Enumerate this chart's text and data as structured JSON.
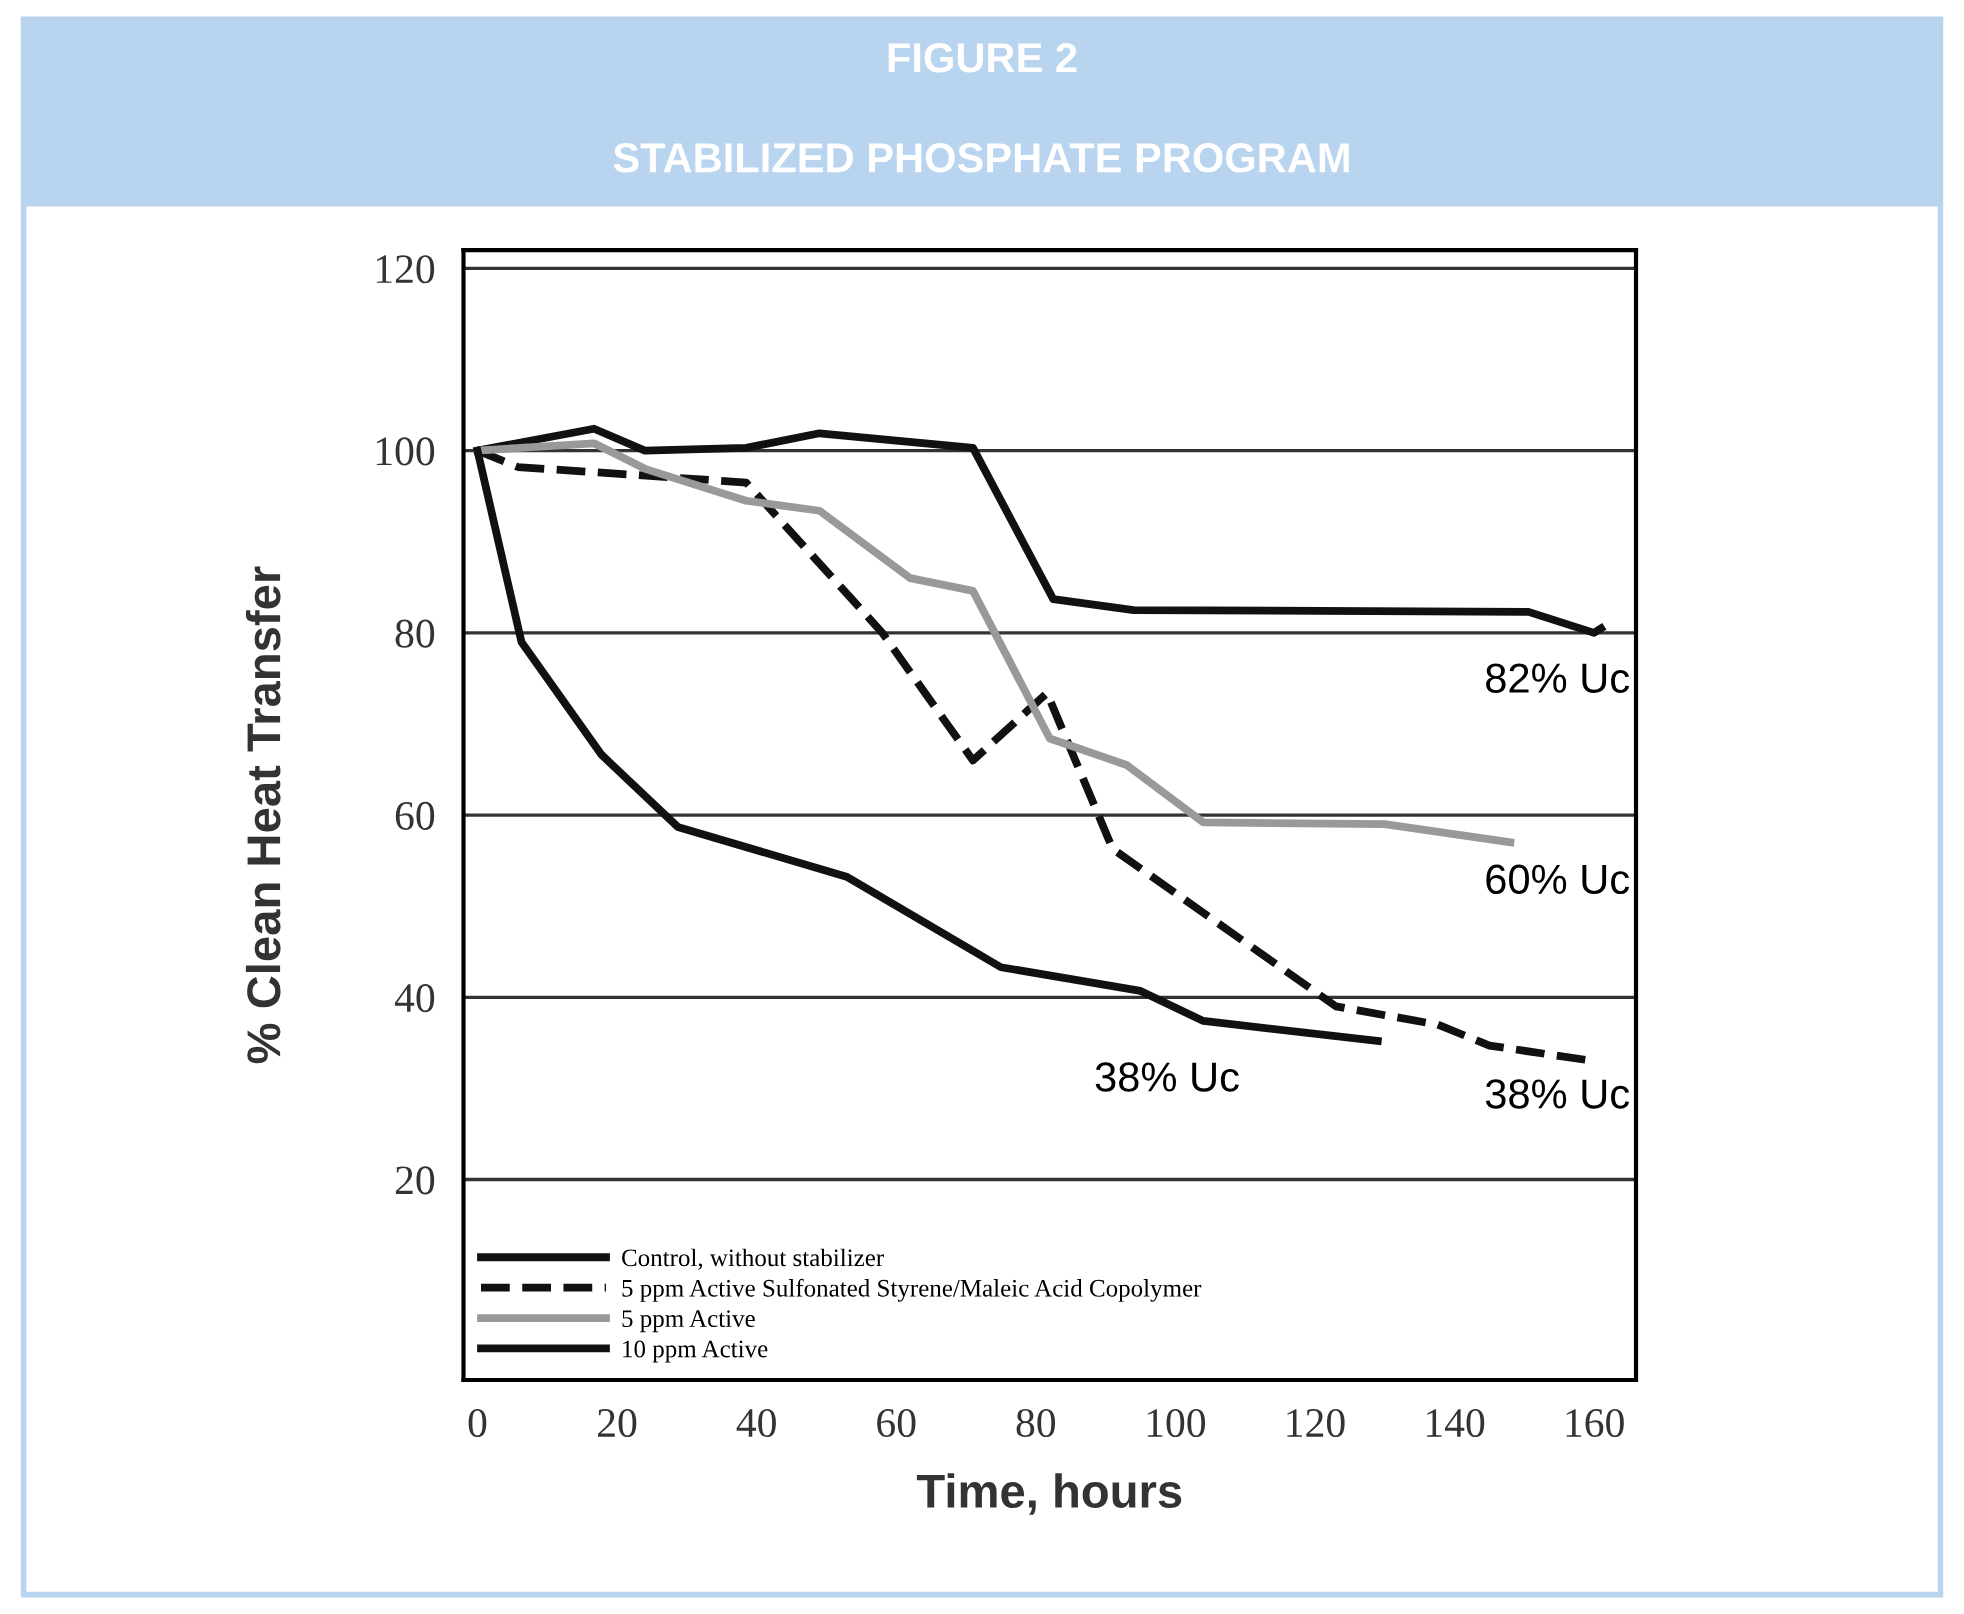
{
  "chart_data": {
    "type": "line",
    "title": "FIGURE 2",
    "subtitle": "STABILIZED PHOSPHATE PROGRAM",
    "xlabel": "Time, hours",
    "ylabel": "% Clean Heat Transfer",
    "xlim": [
      -2,
      166
    ],
    "ylim": [
      -2,
      122
    ],
    "xticks": [
      0,
      20,
      40,
      60,
      80,
      100,
      120,
      140,
      160
    ],
    "yticks": [
      20,
      40,
      60,
      80,
      100,
      120
    ],
    "grid": "y",
    "legend": "bottom left",
    "marker": "none",
    "series": [
      {
        "name": "Control, without stabilizer",
        "color": "#111111",
        "line_style": "solid",
        "x": [
          0,
          16.7,
          24,
          38.5,
          49,
          71,
          82.5,
          94,
          150.6,
          160,
          161
        ],
        "values": [
          100,
          102.4,
          100,
          100.3,
          101.9,
          100.3,
          83.7,
          82.5,
          82.3,
          80,
          80.5
        ]
      },
      {
        "name": "5 ppm Active Sulfonated Styrene/Maleic Acid Copolymer",
        "color": "#111111",
        "line_style": "dashed",
        "x": [
          0,
          5.8,
          38.5,
          58,
          71,
          81.6,
          91,
          123,
          137.6,
          145,
          160
        ],
        "values": [
          100,
          98.2,
          96.5,
          80,
          66,
          73.4,
          56.3,
          39,
          37,
          34.7,
          33
        ]
      },
      {
        "name": "5 ppm Active",
        "color": "#999999",
        "line_style": "solid",
        "x": [
          0,
          16.7,
          24,
          38.5,
          49,
          62,
          71,
          82,
          93,
          104,
          130,
          148
        ],
        "values": [
          100,
          100.8,
          98,
          94.5,
          93.4,
          86,
          84.6,
          68.4,
          65.5,
          59.2,
          59,
          57
        ]
      },
      {
        "name": "10 ppm Active",
        "color": "#111111",
        "line_style": "solid",
        "x": [
          0,
          6.3,
          17.8,
          28.7,
          53,
          75,
          95,
          104,
          129
        ],
        "values": [
          100,
          79,
          66.6,
          58.7,
          53.2,
          43.3,
          40.7,
          37.4,
          35.2
        ]
      }
    ],
    "annotations": [
      "82% Uc",
      "60% Uc",
      "38% Uc",
      "38% Uc"
    ]
  }
}
